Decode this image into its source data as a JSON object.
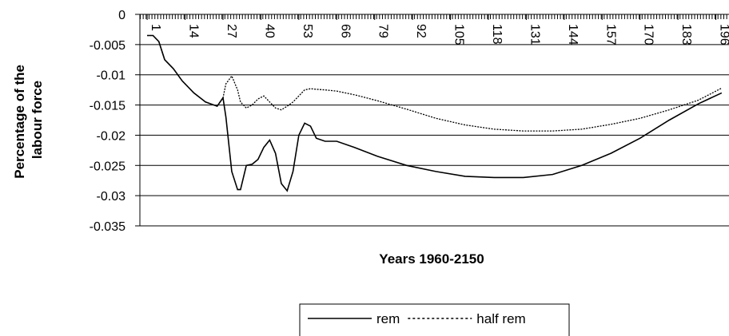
{
  "chart_data": {
    "type": "line",
    "xlabel": "Years 1960-2150",
    "ylabel": [
      "Percentage of the",
      "labour force"
    ],
    "x": [
      1,
      3,
      5,
      7,
      10,
      13,
      17,
      21,
      25,
      27,
      28,
      30,
      32,
      33,
      35,
      37,
      39,
      41,
      43,
      45,
      47,
      49,
      51,
      53,
      55,
      57,
      59,
      62,
      66,
      72,
      80,
      90,
      100,
      110,
      120,
      130,
      140,
      150,
      160,
      170,
      180,
      190,
      198
    ],
    "series": [
      {
        "name": "rem",
        "color": "#000000",
        "dash": false,
        "values": [
          -0.0035,
          -0.0035,
          -0.0045,
          -0.0075,
          -0.009,
          -0.011,
          -0.013,
          -0.0145,
          -0.0152,
          -0.0138,
          -0.017,
          -0.026,
          -0.029,
          -0.029,
          -0.025,
          -0.0248,
          -0.024,
          -0.022,
          -0.0208,
          -0.023,
          -0.028,
          -0.0292,
          -0.026,
          -0.02,
          -0.018,
          -0.0185,
          -0.0205,
          -0.021,
          -0.021,
          -0.022,
          -0.0235,
          -0.025,
          -0.026,
          -0.0268,
          -0.027,
          -0.027,
          -0.0265,
          -0.025,
          -0.023,
          -0.0205,
          -0.0175,
          -0.0148,
          -0.013
        ]
      },
      {
        "name": "half rem",
        "color": "#000000",
        "dash": true,
        "values": [
          -0.0035,
          -0.0035,
          -0.0045,
          -0.0075,
          -0.009,
          -0.011,
          -0.013,
          -0.0145,
          -0.0152,
          -0.0138,
          -0.0115,
          -0.0102,
          -0.0125,
          -0.0145,
          -0.0155,
          -0.015,
          -0.014,
          -0.0135,
          -0.0145,
          -0.0155,
          -0.0158,
          -0.0152,
          -0.0145,
          -0.0135,
          -0.0125,
          -0.0123,
          -0.0124,
          -0.0125,
          -0.0127,
          -0.0133,
          -0.0143,
          -0.0157,
          -0.0172,
          -0.0183,
          -0.019,
          -0.0193,
          -0.0193,
          -0.019,
          -0.0182,
          -0.0172,
          -0.0158,
          -0.0142,
          -0.0122
        ]
      }
    ],
    "xlim": [
      -1.5,
      200.5
    ],
    "xticks": [
      1,
      14,
      27,
      40,
      53,
      66,
      79,
      92,
      105,
      118,
      131,
      144,
      157,
      170,
      183,
      196
    ],
    "ylim": [
      -0.035,
      0
    ],
    "yticks": [
      0,
      -0.005,
      -0.01,
      -0.015,
      -0.02,
      -0.025,
      -0.03,
      -0.035
    ],
    "grid": true,
    "legend": "bottom"
  }
}
